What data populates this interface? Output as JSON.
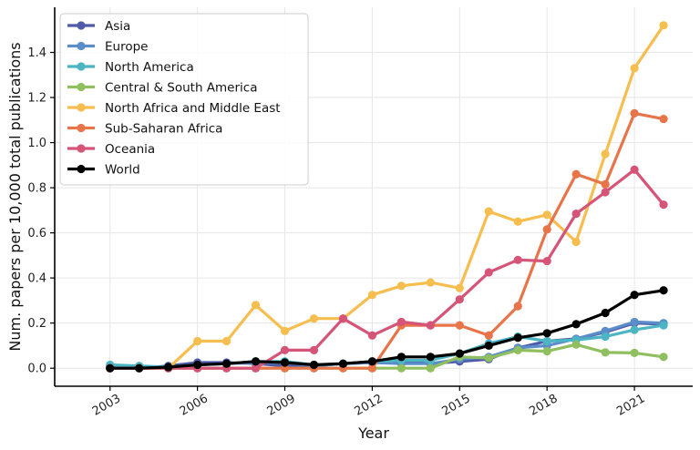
{
  "chart_data": {
    "type": "line",
    "title": "",
    "xlabel": "Year",
    "ylabel": "Num. papers per 10,000 total publications",
    "xlim": [
      2001.1,
      2023.0
    ],
    "ylim": [
      -0.08,
      1.6
    ],
    "x_ticks": [
      2003,
      2006,
      2009,
      2012,
      2015,
      2018,
      2021
    ],
    "y_ticks": [
      0.0,
      0.2,
      0.4,
      0.6,
      0.8,
      1.0,
      1.2,
      1.4
    ],
    "y_tick_labels": [
      "0.0",
      "0.2",
      "0.4",
      "0.6",
      "0.8",
      "1.0",
      "1.2",
      "1.4"
    ],
    "grid": true,
    "legend_position": "top-left",
    "x": [
      2003,
      2004,
      2005,
      2006,
      2007,
      2008,
      2009,
      2010,
      2011,
      2012,
      2013,
      2014,
      2015,
      2016,
      2017,
      2018,
      2019,
      2020,
      2021,
      2022
    ],
    "series": [
      {
        "name": "Asia",
        "color": "#4f5aa8",
        "values": [
          0.0,
          0.0,
          0.01,
          0.025,
          0.025,
          0.02,
          0.01,
          0.01,
          0.02,
          0.025,
          0.03,
          0.02,
          0.03,
          0.04,
          0.09,
          0.12,
          0.13,
          0.16,
          0.2,
          0.195
        ]
      },
      {
        "name": "Europe",
        "color": "#5b8ec9",
        "values": [
          0.01,
          0.005,
          0.005,
          0.015,
          0.02,
          0.025,
          0.025,
          0.01,
          0.02,
          0.025,
          0.02,
          0.02,
          0.04,
          0.05,
          0.09,
          0.1,
          0.13,
          0.165,
          0.205,
          0.2
        ]
      },
      {
        "name": "North America",
        "color": "#4bb5c4",
        "values": [
          0.015,
          0.01,
          0.005,
          0.015,
          0.02,
          0.03,
          0.03,
          0.015,
          0.02,
          0.03,
          0.035,
          0.035,
          0.065,
          0.11,
          0.14,
          0.12,
          0.125,
          0.14,
          0.17,
          0.19
        ]
      },
      {
        "name": "Central & South America",
        "color": "#8fbf5f",
        "values": [
          0.0,
          0.0,
          0.0,
          0.0,
          0.0,
          0.0,
          0.0,
          0.0,
          0.0,
          0.0,
          0.0,
          0.0,
          0.05,
          0.045,
          0.08,
          0.075,
          0.105,
          0.07,
          0.068,
          0.05
        ]
      },
      {
        "name": "North Africa and Middle East",
        "color": "#f6bd4f",
        "values": [
          0.0,
          0.0,
          0.0,
          0.12,
          0.12,
          0.28,
          0.165,
          0.22,
          0.22,
          0.325,
          0.365,
          0.38,
          0.355,
          0.695,
          0.65,
          0.68,
          0.56,
          0.95,
          1.33,
          1.52
        ]
      },
      {
        "name": "Sub-Saharan Africa",
        "color": "#e8744a",
        "values": [
          0.0,
          0.0,
          0.0,
          0.0,
          0.0,
          0.0,
          0.0,
          0.0,
          0.0,
          0.0,
          0.19,
          0.19,
          0.19,
          0.145,
          0.275,
          0.615,
          0.86,
          0.815,
          1.13,
          1.105
        ]
      },
      {
        "name": "Oceania",
        "color": "#d65478",
        "values": [
          0.0,
          0.0,
          0.0,
          0.0,
          0.0,
          0.0,
          0.08,
          0.08,
          0.22,
          0.145,
          0.205,
          0.19,
          0.305,
          0.425,
          0.48,
          0.475,
          0.685,
          0.78,
          0.88,
          0.725
        ]
      },
      {
        "name": "World",
        "color": "#000000",
        "values": [
          0.0,
          0.0,
          0.005,
          0.015,
          0.02,
          0.03,
          0.025,
          0.015,
          0.02,
          0.03,
          0.05,
          0.05,
          0.065,
          0.1,
          0.135,
          0.155,
          0.195,
          0.245,
          0.325,
          0.345
        ]
      }
    ]
  }
}
